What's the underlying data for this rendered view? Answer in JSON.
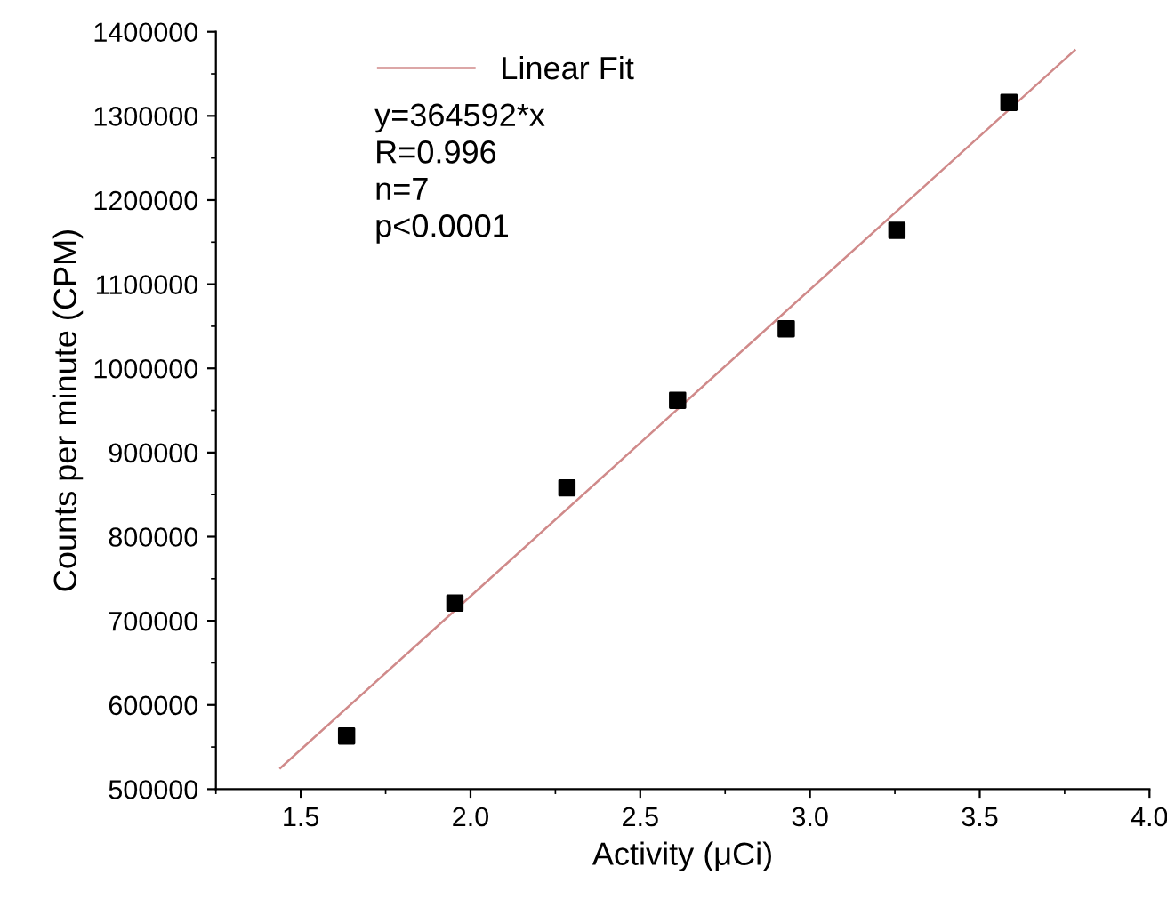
{
  "chart_data": {
    "type": "scatter",
    "xlabel": "Activity (μCi)",
    "ylabel": "Counts per minute (CPM)",
    "series": [
      {
        "color": "#000000",
        "marker": "square",
        "x": [
          1.635,
          1.954,
          2.284,
          2.61,
          2.93,
          3.256,
          3.586
        ],
        "values": [
          563000,
          721000,
          858000,
          962000,
          1047000,
          1164000,
          1316000
        ]
      },
      {
        "type": "line",
        "name": "Linear Fit",
        "color": "#d08a8a",
        "marker": "none",
        "line_style": "solid",
        "x": [
          1.44,
          3.78
        ],
        "values": [
          525000,
          1378000
        ]
      }
    ],
    "annotations": [
      "y=364592*x",
      "R=0.996",
      "n=7",
      "p<0.0001"
    ],
    "xlim": [
      1.25,
      4.0
    ],
    "xticks": [
      1.5,
      {
        "value": 2,
        "label": "2.0"
      },
      2.5,
      {
        "value": 3,
        "label": "3.0"
      },
      3.5,
      {
        "value": 4,
        "label": "4.0"
      }
    ],
    "ylim": [
      500000,
      1400000
    ],
    "yticks": [
      500000,
      600000,
      700000,
      800000,
      900000,
      1000000,
      1100000,
      1200000,
      1300000,
      1400000
    ],
    "grid": false,
    "legend": "top left"
  }
}
